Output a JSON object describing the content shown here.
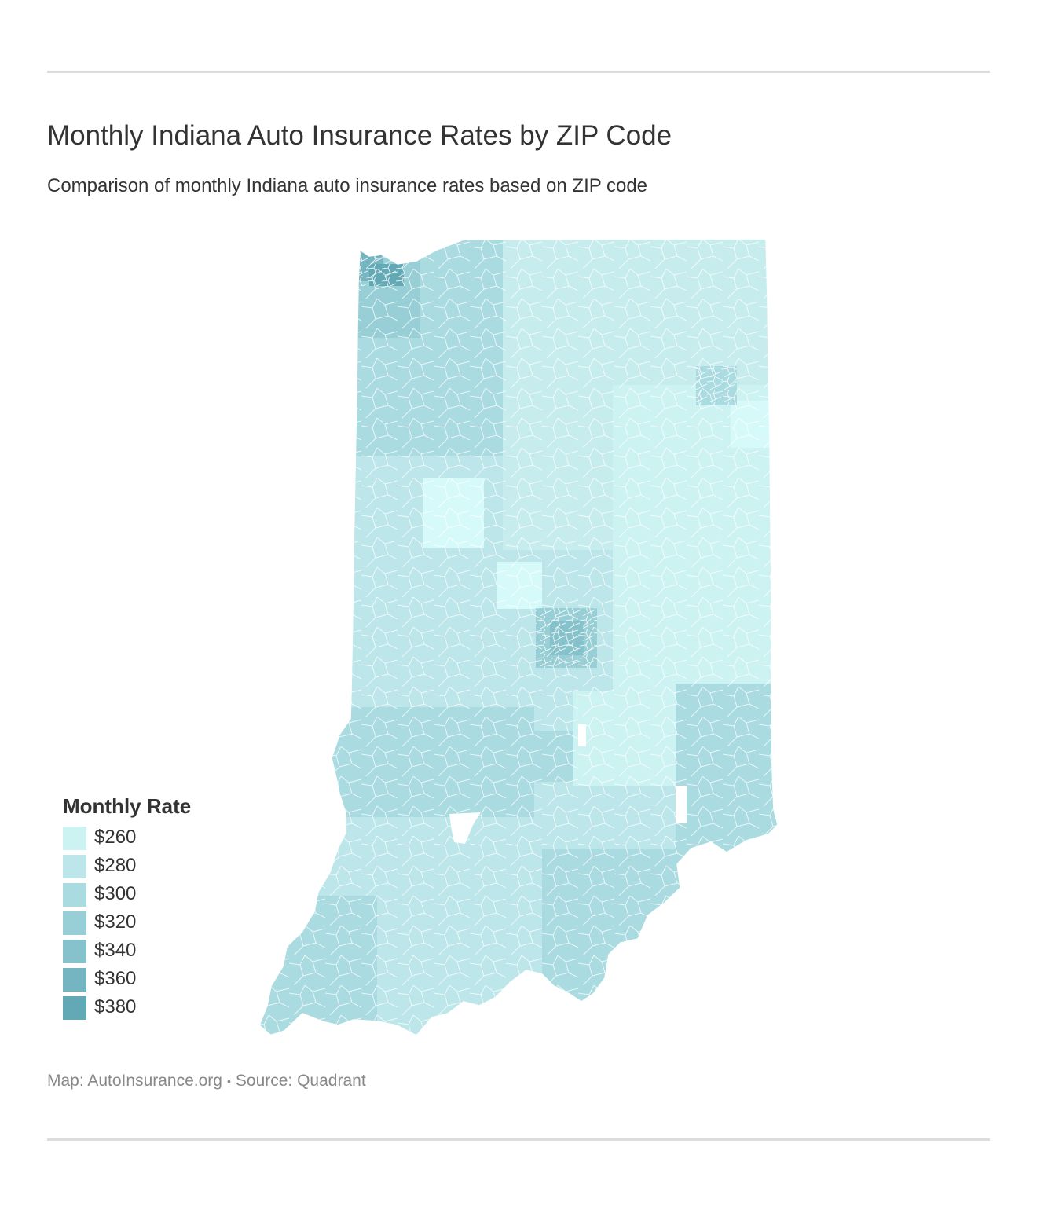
{
  "header": {
    "title": "Monthly Indiana Auto Insurance Rates by ZIP Code",
    "subtitle": "Comparison of monthly Indiana auto insurance rates based on ZIP code"
  },
  "legend": {
    "title": "Monthly Rate",
    "items": [
      {
        "label": "$260",
        "color": "#cdf2f2"
      },
      {
        "label": "$280",
        "color": "#bce6e9"
      },
      {
        "label": "$300",
        "color": "#aadbe0"
      },
      {
        "label": "$320",
        "color": "#98cfd6"
      },
      {
        "label": "$340",
        "color": "#86c2cc"
      },
      {
        "label": "$360",
        "color": "#75b5c1"
      },
      {
        "label": "$380",
        "color": "#63a8b5"
      }
    ]
  },
  "footer": {
    "map_credit": "Map: AutoInsurance.org",
    "separator": "•",
    "source": "Source: Quadrant"
  }
}
